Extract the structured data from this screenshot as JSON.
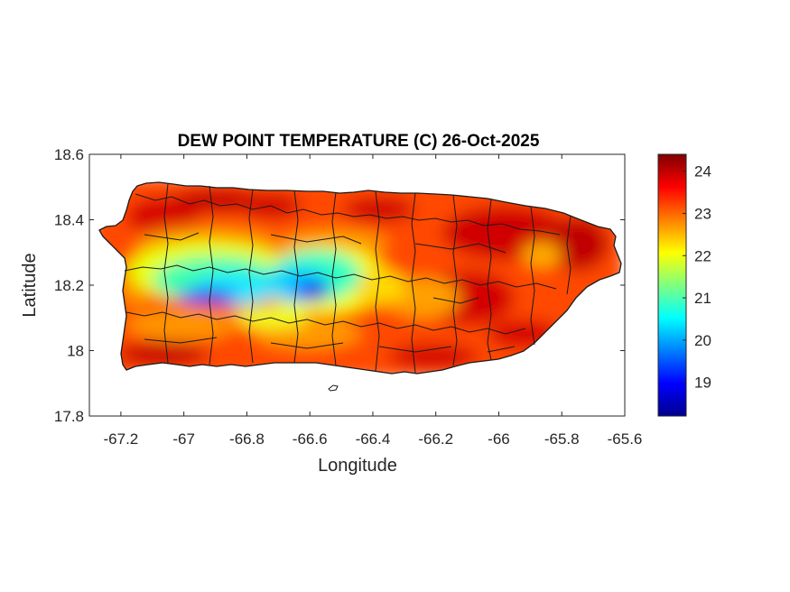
{
  "chart_data": {
    "type": "heatmap",
    "title": "DEW POINT TEMPERATURE (C) 26-Oct-2025",
    "xlabel": "Longitude",
    "ylabel": "Latitude",
    "xlim": [
      -67.3,
      -65.6
    ],
    "ylim": [
      17.8,
      18.6
    ],
    "x_ticks": [
      -67.2,
      -67,
      -66.8,
      -66.6,
      -66.4,
      -66.2,
      -66,
      -65.8,
      -65.6
    ],
    "y_ticks": [
      17.8,
      18,
      18.2,
      18.4,
      18.6
    ],
    "x_tick_labels": [
      "-67.2",
      "-67",
      "-66.8",
      "-66.6",
      "-66.4",
      "-66.2",
      "-66",
      "-65.8",
      "-65.6"
    ],
    "y_tick_labels": [
      "17.8",
      "18",
      "18.2",
      "18.4",
      "18.6"
    ],
    "colorbar": {
      "colormap": "jet",
      "range": [
        18.2,
        24.4
      ],
      "ticks": [
        19,
        20,
        21,
        22,
        23,
        24
      ],
      "tick_labels": [
        "19",
        "20",
        "21",
        "22",
        "23",
        "24"
      ]
    },
    "grid": false
  }
}
